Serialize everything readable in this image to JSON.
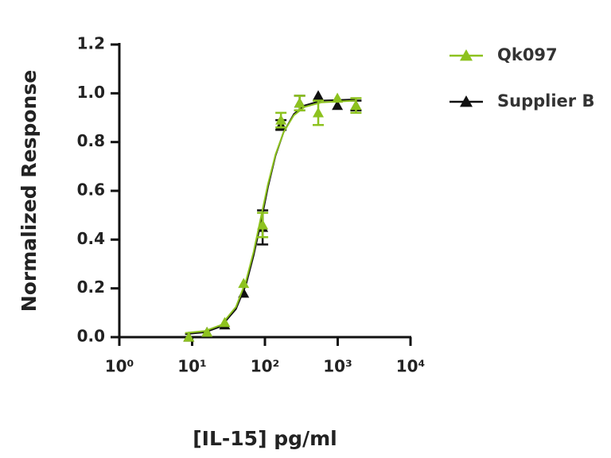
{
  "chart_data": {
    "type": "scatter",
    "x_label": "[IL-15] pg/ml",
    "y_label": "Normalized Response",
    "xscale": "log",
    "xlim": [
      1,
      10000
    ],
    "xticks": [
      {
        "value": 1,
        "label": "10⁰"
      },
      {
        "value": 10,
        "label": "10¹"
      },
      {
        "value": 100,
        "label": "10²"
      },
      {
        "value": 1000,
        "label": "10³"
      },
      {
        "value": 10000,
        "label": "10⁴"
      }
    ],
    "ylim": [
      0,
      1.2
    ],
    "yticks": [
      {
        "value": 0,
        "label": "0.0"
      },
      {
        "value": 0.2,
        "label": "0.2"
      },
      {
        "value": 0.4,
        "label": "0.4"
      },
      {
        "value": 0.6,
        "label": "0.6"
      },
      {
        "value": 0.8,
        "label": "0.8"
      },
      {
        "value": 1.0,
        "label": "1.0"
      },
      {
        "value": 1.2,
        "label": "1.2"
      }
    ],
    "grid": false,
    "legend": "right",
    "series": [
      {
        "name": "Qk097",
        "color": "#8dc21f",
        "x": [
          9,
          16,
          28,
          51,
          93,
          166,
          300,
          540,
          990,
          1780
        ],
        "values": [
          0.0,
          0.02,
          0.06,
          0.22,
          0.46,
          0.89,
          0.96,
          0.92,
          0.98,
          0.95
        ],
        "errors": [
          null,
          null,
          null,
          null,
          0.05,
          0.03,
          0.03,
          0.05,
          null,
          0.03
        ],
        "fit": {
          "x": [
            8,
            15,
            25,
            40,
            55,
            70,
            88,
            110,
            140,
            180,
            250,
            350,
            600,
            1800
          ],
          "values": [
            0.017,
            0.025,
            0.05,
            0.124,
            0.23,
            0.35,
            0.49,
            0.627,
            0.75,
            0.84,
            0.91,
            0.944,
            0.963,
            0.97
          ]
        }
      },
      {
        "name": "Supplier B",
        "color": "#111111",
        "x": [
          9,
          16,
          28,
          51,
          93,
          166,
          300,
          540,
          990,
          1780
        ],
        "values": [
          0.0,
          0.02,
          0.05,
          0.18,
          0.45,
          0.87,
          0.96,
          0.99,
          0.95,
          0.95
        ],
        "errors": [
          null,
          null,
          null,
          null,
          0.07,
          0.02,
          0.03,
          null,
          null,
          0.02
        ],
        "fit": {
          "x": [
            8,
            15,
            25,
            40,
            55,
            70,
            88,
            110,
            140,
            180,
            250,
            350,
            600,
            1800
          ],
          "values": [
            0.012,
            0.02,
            0.044,
            0.115,
            0.215,
            0.335,
            0.47,
            0.615,
            0.745,
            0.84,
            0.915,
            0.95,
            0.97,
            0.975
          ]
        }
      }
    ]
  }
}
